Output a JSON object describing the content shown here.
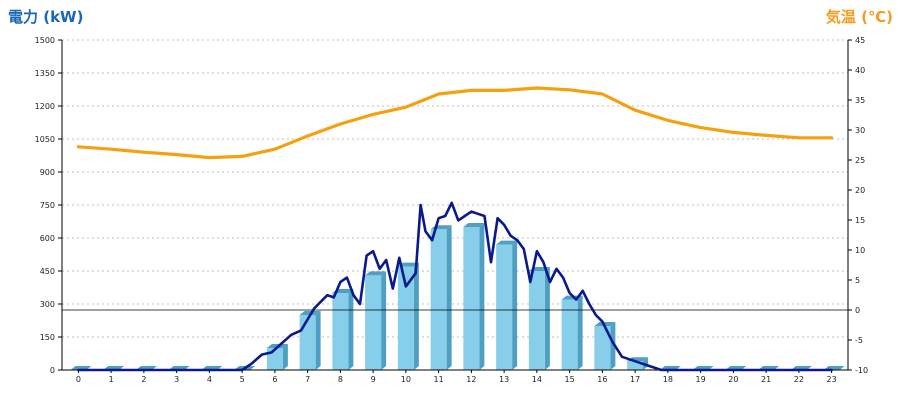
{
  "chart_data": {
    "type": "bar",
    "left_axis_title": "電力 (kW)",
    "right_axis_title": "気温 (℃)",
    "left_ylim": [
      0,
      1500
    ],
    "left_ticks": [
      0,
      150,
      300,
      450,
      600,
      750,
      900,
      1050,
      1200,
      1350,
      1500
    ],
    "right_ylim": [
      -10,
      45
    ],
    "right_ticks": [
      -10,
      -5,
      0,
      5,
      10,
      15,
      20,
      25,
      30,
      35,
      40,
      45
    ],
    "categories": [
      "0",
      "1",
      "2",
      "3",
      "4",
      "5",
      "6",
      "7",
      "8",
      "9",
      "10",
      "11",
      "12",
      "13",
      "14",
      "15",
      "16",
      "17",
      "18",
      "19",
      "20",
      "21",
      "22",
      "23"
    ],
    "grid": true,
    "colors": {
      "bar_front": "#87ceeb",
      "bar_side": "#4f9fc2",
      "bar_top": "#b6e4f7",
      "power_line": "#0a1a8c",
      "temperature_line": "#f5a10f",
      "grid": "#bfbfbf",
      "zero_line": "#000000",
      "left_title": "#1a67b5",
      "right_title": "#f39c1e"
    },
    "series": [
      {
        "kind": "bar",
        "axis": "left",
        "values": [
          0,
          0,
          0,
          0,
          0,
          0,
          100,
          250,
          350,
          430,
          470,
          640,
          650,
          570,
          450,
          320,
          200,
          40,
          0,
          0,
          0,
          0,
          0,
          0
        ]
      },
      {
        "kind": "line",
        "axis": "left",
        "x": [
          0,
          5.0,
          5.3,
          5.6,
          5.9,
          6.2,
          6.5,
          6.8,
          7.0,
          7.2,
          7.4,
          7.6,
          7.8,
          8.0,
          8.2,
          8.4,
          8.6,
          8.8,
          9.0,
          9.2,
          9.4,
          9.6,
          9.8,
          10.0,
          10.15,
          10.3,
          10.45,
          10.6,
          10.8,
          11.0,
          11.2,
          11.4,
          11.6,
          11.8,
          12.0,
          12.2,
          12.4,
          12.6,
          12.8,
          13.0,
          13.2,
          13.4,
          13.6,
          13.8,
          14.0,
          14.2,
          14.4,
          14.6,
          14.8,
          15.0,
          15.2,
          15.4,
          15.6,
          15.8,
          16.0,
          16.3,
          16.6,
          17.0,
          17.4,
          17.8,
          18.0,
          23.0
        ],
        "values": [
          0,
          0,
          30,
          70,
          80,
          120,
          160,
          180,
          230,
          280,
          310,
          340,
          330,
          400,
          420,
          340,
          300,
          520,
          540,
          460,
          500,
          370,
          510,
          380,
          410,
          440,
          750,
          630,
          590,
          690,
          700,
          760,
          680,
          700,
          720,
          710,
          700,
          490,
          690,
          660,
          610,
          590,
          550,
          400,
          540,
          490,
          400,
          460,
          420,
          350,
          320,
          360,
          300,
          250,
          220,
          130,
          60,
          40,
          20,
          0,
          0,
          0
        ]
      },
      {
        "kind": "line",
        "axis": "right",
        "x": [
          0,
          1,
          2,
          3,
          4,
          5,
          6,
          7,
          8,
          9,
          10,
          11,
          12,
          13,
          14,
          15,
          16,
          17,
          18,
          19,
          20,
          21,
          22,
          23
        ],
        "values": [
          27.2,
          26.8,
          26.3,
          25.9,
          25.4,
          25.6,
          26.8,
          29.0,
          31.0,
          32.6,
          33.8,
          36.0,
          36.6,
          36.6,
          37.0,
          36.7,
          36.0,
          33.3,
          31.6,
          30.4,
          29.6,
          29.1,
          28.7,
          28.7
        ]
      }
    ]
  }
}
